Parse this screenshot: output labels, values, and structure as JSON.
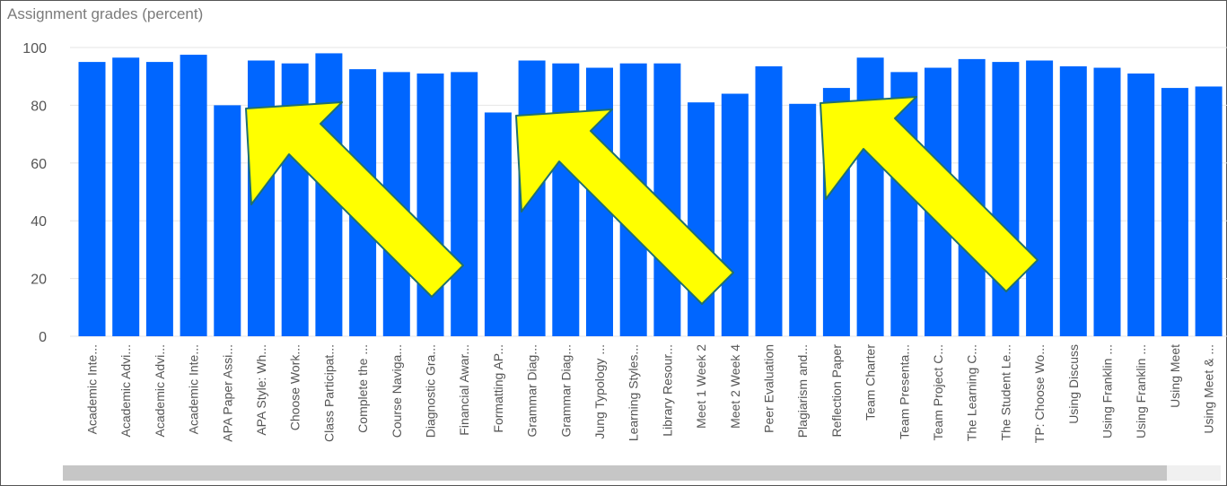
{
  "colors": {
    "bar": "#0066ff",
    "grid": "#e6e6e6",
    "tick_text": "#555555",
    "title_text": "#7b7b7b",
    "arrow_fill": "#ffff00",
    "arrow_stroke": "#1f6f6f"
  },
  "chart_data": {
    "type": "bar",
    "title": "Assignment grades (percent)",
    "ylim": [
      0,
      100
    ],
    "yticks": [
      0,
      20,
      40,
      60,
      80,
      100
    ],
    "grid": true,
    "legend": "none",
    "categories": [
      "Academic Inte...",
      "Academic Advi...",
      "Academic Advi...",
      "Academic Inte...",
      "APA Paper Assi...",
      "APA Style: Wh...",
      "Choose Work...",
      "Class Participat...",
      "Complete the ...",
      "Course Naviga...",
      "Diagnostic Gra...",
      "Financial Awar...",
      "Formatting AP...",
      "Grammar Diag...",
      "Grammar Diag...",
      "Jung Typology ...",
      "Learning Styles...",
      "Library Resour...",
      "Meet 1 Week 2",
      "Meet 2 Week 4",
      "Peer Evaluation",
      "Plagiarism and...",
      "Reflection Paper",
      "Team Charter",
      "Team Presenta...",
      "Team Project C...",
      "The Learning C...",
      "The Student Le...",
      "TP: Choose Wo...",
      "Using Discuss",
      "Using Franklin ...",
      "Using Franklin ...",
      "Using Meet",
      "Using Meet & ..."
    ],
    "values": [
      95,
      96.5,
      95,
      97.5,
      80,
      95.5,
      94.5,
      98,
      92.5,
      91.5,
      91,
      91.5,
      77.5,
      95.5,
      94.5,
      93,
      94.5,
      94.5,
      81,
      84,
      93.5,
      80.5,
      86,
      96.5,
      91.5,
      93,
      96,
      95,
      95.5,
      93.5,
      93,
      91,
      86,
      86.5
    ]
  },
  "annotations": {
    "arrows": [
      {
        "name": "highlight-arrow-1",
        "points_to": "APA Paper Assi..."
      },
      {
        "name": "highlight-arrow-2",
        "points_to": "Formatting AP..."
      },
      {
        "name": "highlight-arrow-3",
        "points_to": "Plagiarism and..."
      }
    ]
  },
  "scrollbar": {
    "label": "horizontal-scrollbar"
  }
}
